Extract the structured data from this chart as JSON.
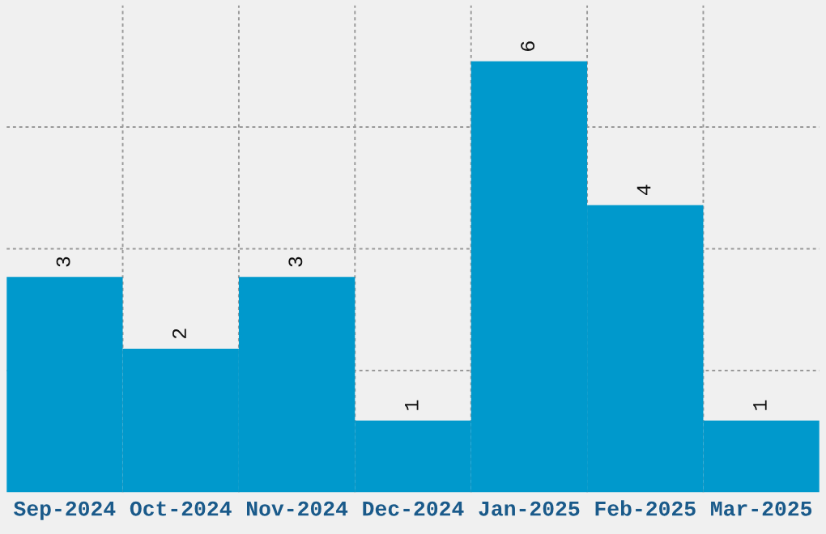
{
  "chart_data": {
    "type": "bar",
    "categories": [
      "Sep-2024",
      "Oct-2024",
      "Nov-2024",
      "Dec-2024",
      "Jan-2025",
      "Feb-2025",
      "Mar-2025"
    ],
    "values": [
      3,
      2,
      3,
      1,
      6,
      4,
      1
    ],
    "color": "#0099cc",
    "data_labels": true,
    "grid": true,
    "tick_labels": "x"
  }
}
